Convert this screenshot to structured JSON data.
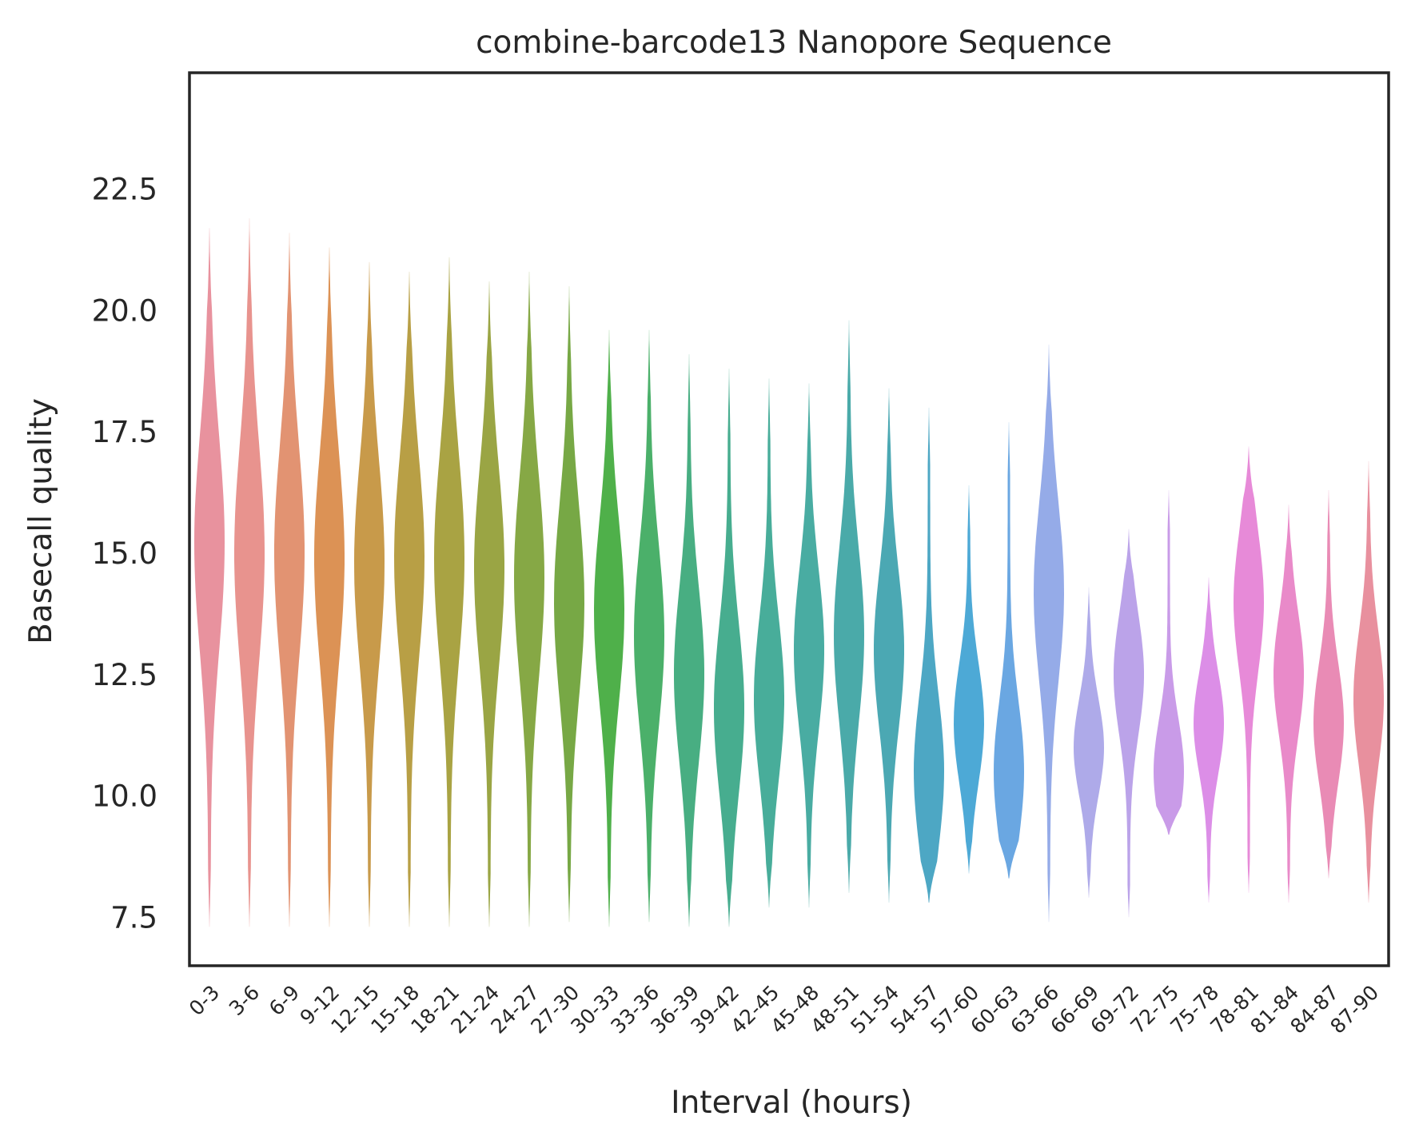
{
  "chart_data": {
    "type": "violin",
    "title": "combine-barcode13 Nanopore Sequence",
    "xlabel": "Interval (hours)",
    "ylabel": "Basecall quality",
    "ylim": [
      6.5,
      24.9
    ],
    "yticks": [
      "7.5",
      "10.0",
      "12.5",
      "15.0",
      "17.5",
      "20.0",
      "22.5"
    ],
    "grid": false,
    "categories": [
      "0-3",
      "3-6",
      "6-9",
      "9-12",
      "12-15",
      "15-18",
      "18-21",
      "21-24",
      "24-27",
      "27-30",
      "30-33",
      "33-36",
      "36-39",
      "39-42",
      "42-45",
      "45-48",
      "48-51",
      "51-54",
      "54-57",
      "57-60",
      "60-63",
      "63-66",
      "66-69",
      "69-72",
      "72-75",
      "75-78",
      "78-81",
      "81-84",
      "84-87",
      "87-90"
    ],
    "colors": [
      "#e8929e",
      "#e8938e",
      "#e29372",
      "#dc9255",
      "#c89a4a",
      "#b89f45",
      "#a9a343",
      "#9aa544",
      "#86a845",
      "#77a845",
      "#4fb04a",
      "#4bb06a",
      "#48ae82",
      "#47ad8f",
      "#48ad9a",
      "#49aca2",
      "#4aaaa9",
      "#4ba8b3",
      "#4da7c4",
      "#4da9d6",
      "#6aa7e2",
      "#95abe8",
      "#aeaae9",
      "#bba3e9",
      "#c99be8",
      "#dc8ee7",
      "#e78ad8",
      "#e98ac9",
      "#e98bb5",
      "#e8909e"
    ],
    "series": [
      {
        "name": "0-3",
        "min": 7.3,
        "max": 21.7,
        "median": 15.2
      },
      {
        "name": "3-6",
        "min": 7.3,
        "max": 21.9,
        "median": 15.0
      },
      {
        "name": "6-9",
        "min": 7.3,
        "max": 21.6,
        "median": 15.0
      },
      {
        "name": "9-12",
        "min": 7.3,
        "max": 21.3,
        "median": 14.9
      },
      {
        "name": "12-15",
        "min": 7.3,
        "max": 21.0,
        "median": 14.8
      },
      {
        "name": "15-18",
        "min": 7.3,
        "max": 20.8,
        "median": 14.9
      },
      {
        "name": "18-21",
        "min": 7.3,
        "max": 21.1,
        "median": 14.9
      },
      {
        "name": "21-24",
        "min": 7.3,
        "max": 20.6,
        "median": 14.7
      },
      {
        "name": "24-27",
        "min": 7.3,
        "max": 20.8,
        "median": 14.5
      },
      {
        "name": "27-30",
        "min": 7.4,
        "max": 20.5,
        "median": 14.0
      },
      {
        "name": "30-33",
        "min": 7.3,
        "max": 19.6,
        "median": 13.8
      },
      {
        "name": "33-36",
        "min": 7.4,
        "max": 19.6,
        "median": 13.3
      },
      {
        "name": "36-39",
        "min": 7.3,
        "max": 19.1,
        "median": 12.5
      },
      {
        "name": "39-42",
        "min": 7.3,
        "max": 18.8,
        "median": 11.8
      },
      {
        "name": "42-45",
        "min": 7.7,
        "max": 18.6,
        "median": 12.0
      },
      {
        "name": "45-48",
        "min": 7.7,
        "max": 18.5,
        "median": 13.0
      },
      {
        "name": "48-51",
        "min": 8.0,
        "max": 19.8,
        "median": 13.3
      },
      {
        "name": "51-54",
        "min": 7.8,
        "max": 18.4,
        "median": 13.0
      },
      {
        "name": "54-57",
        "min": 7.8,
        "max": 18.0,
        "median": 10.5
      },
      {
        "name": "57-60",
        "min": 8.4,
        "max": 16.4,
        "median": 11.5
      },
      {
        "name": "60-63",
        "min": 8.3,
        "max": 17.7,
        "median": 10.5
      },
      {
        "name": "63-66",
        "min": 7.4,
        "max": 19.3,
        "median": 14.2
      },
      {
        "name": "66-69",
        "min": 7.9,
        "max": 14.3,
        "median": 11.0
      },
      {
        "name": "69-72",
        "min": 7.5,
        "max": 15.5,
        "median": 12.5
      },
      {
        "name": "72-75",
        "min": 9.2,
        "max": 16.3,
        "median": 10.5
      },
      {
        "name": "75-78",
        "min": 7.8,
        "max": 14.5,
        "median": 11.5
      },
      {
        "name": "78-81",
        "min": 8.0,
        "max": 17.2,
        "median": 14.0
      },
      {
        "name": "81-84",
        "min": 7.8,
        "max": 16.0,
        "median": 12.5
      },
      {
        "name": "84-87",
        "min": 8.3,
        "max": 16.3,
        "median": 11.5
      },
      {
        "name": "87-90",
        "min": 7.8,
        "max": 16.9,
        "median": 12.0
      }
    ]
  }
}
